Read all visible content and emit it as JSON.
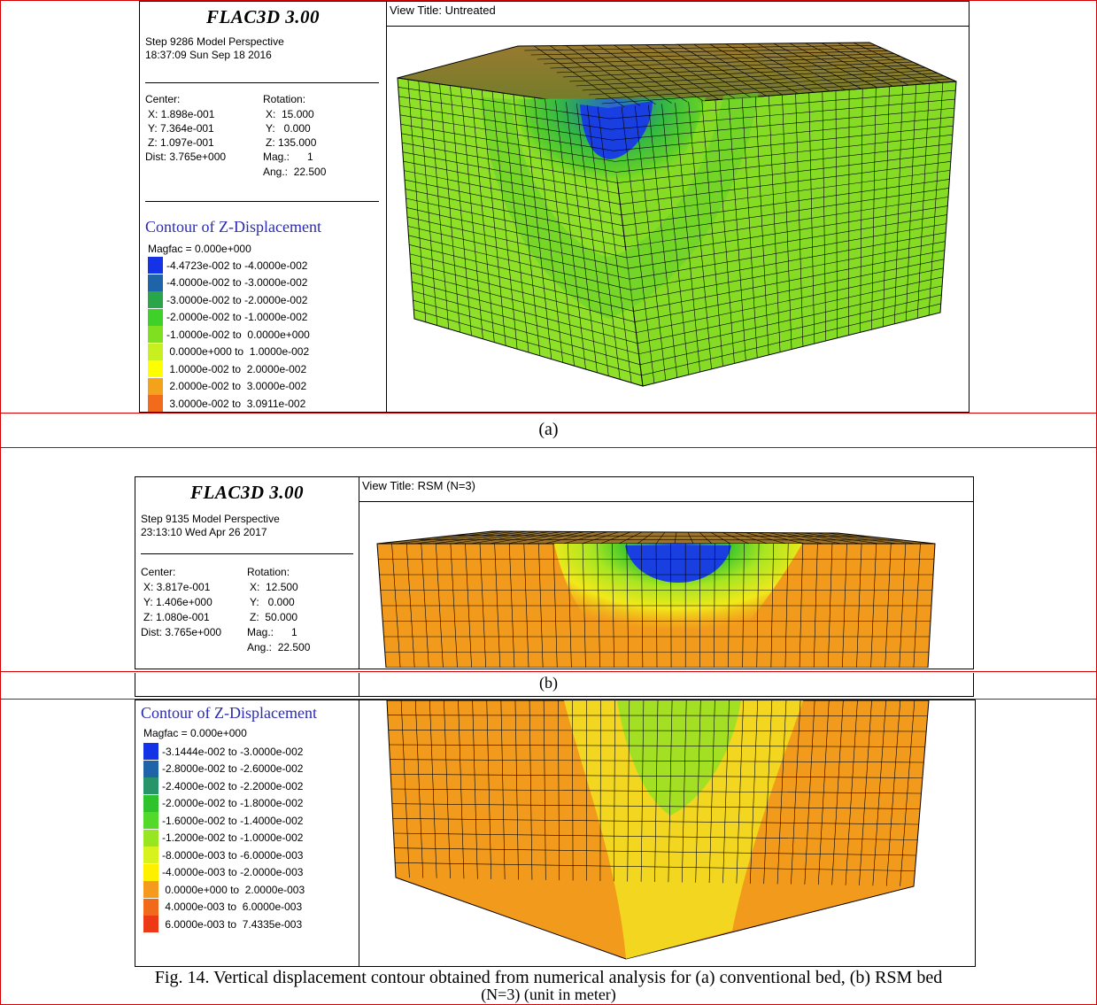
{
  "panel_a": {
    "app_title": "FLAC3D 3.00",
    "step_line": "Step 9286  Model Perspective",
    "timestamp": "18:37:09 Sun Sep 18 2016",
    "center_label": "Center:",
    "center_x": "X: 1.898e-001",
    "center_y": "Y: 7.364e-001",
    "center_z": "Z: 1.097e-001",
    "dist": "Dist: 3.765e+000",
    "rotation_label": "Rotation:",
    "rot_x": "X:  15.000",
    "rot_y": "Y:   0.000",
    "rot_z": "Z: 135.000",
    "mag": "Mag.:      1",
    "ang": "Ang.:  22.500",
    "contour_title": "Contour of Z-Displacement",
    "magfac": "Magfac =  0.000e+000",
    "legend": [
      {
        "label": "-4.4723e-002 to -4.0000e-002",
        "color": "#1433e6"
      },
      {
        "label": "-4.0000e-002 to -3.0000e-002",
        "color": "#1f63a8"
      },
      {
        "label": "-3.0000e-002 to -2.0000e-002",
        "color": "#2aa64a"
      },
      {
        "label": "-2.0000e-002 to -1.0000e-002",
        "color": "#3ed12a"
      },
      {
        "label": "-1.0000e-002 to  0.0000e+000",
        "color": "#7fe020"
      },
      {
        "label": " 0.0000e+000 to  1.0000e-002",
        "color": "#c8f020"
      },
      {
        "label": " 1.0000e-002 to  2.0000e-002",
        "color": "#ffff00"
      },
      {
        "label": " 2.0000e-002 to  3.0000e-002",
        "color": "#f4a21c"
      },
      {
        "label": " 3.0000e-002 to  3.0911e-002",
        "color": "#f26a1a"
      }
    ],
    "view_title": "View Title: Untreated",
    "label": "(a)"
  },
  "panel_b": {
    "app_title": "FLAC3D 3.00",
    "step_line": "Step 9135  Model Perspective",
    "timestamp": "23:13:10 Wed Apr 26 2017",
    "center_label": "Center:",
    "center_x": "X: 3.817e-001",
    "center_y": "Y: 1.406e+000",
    "center_z": "Z: 1.080e-001",
    "dist": "Dist: 3.765e+000",
    "rotation_label": "Rotation:",
    "rot_x": "X:  12.500",
    "rot_y": "Y:   0.000",
    "rot_z": "Z:  50.000",
    "mag": "Mag.:      1",
    "ang": "Ang.:  22.500",
    "contour_title": "Contour of Z-Displacement",
    "magfac": "Magfac =  0.000e+000",
    "legend": [
      {
        "label": "-3.1444e-002 to -3.0000e-002",
        "color": "#1433e6"
      },
      {
        "label": "-2.8000e-002 to -2.6000e-002",
        "color": "#1f63a8"
      },
      {
        "label": "-2.4000e-002 to -2.2000e-002",
        "color": "#27946a"
      },
      {
        "label": "-2.0000e-002 to -1.8000e-002",
        "color": "#2ec22c"
      },
      {
        "label": "-1.6000e-002 to -1.4000e-002",
        "color": "#52d92a"
      },
      {
        "label": "-1.2000e-002 to -1.0000e-002",
        "color": "#98e622"
      },
      {
        "label": "-8.0000e-003 to -6.0000e-003",
        "color": "#d8f21e"
      },
      {
        "label": "-4.0000e-003 to -2.0000e-003",
        "color": "#fff000"
      },
      {
        "label": " 0.0000e+000 to  2.0000e-003",
        "color": "#f59a1c"
      },
      {
        "label": " 4.0000e-003 to  6.0000e-003",
        "color": "#f06a1a"
      },
      {
        "label": " 6.0000e-003 to  7.4335e-003",
        "color": "#ec3a16"
      }
    ],
    "view_title": "View Title: RSM (N=3)",
    "label": "(b)"
  },
  "caption_line1": "Fig. 14. Vertical displacement contour obtained from numerical analysis for (a) conventional bed, (b) RSM bed",
  "caption_line2": "(N=3) (unit in meter)"
}
